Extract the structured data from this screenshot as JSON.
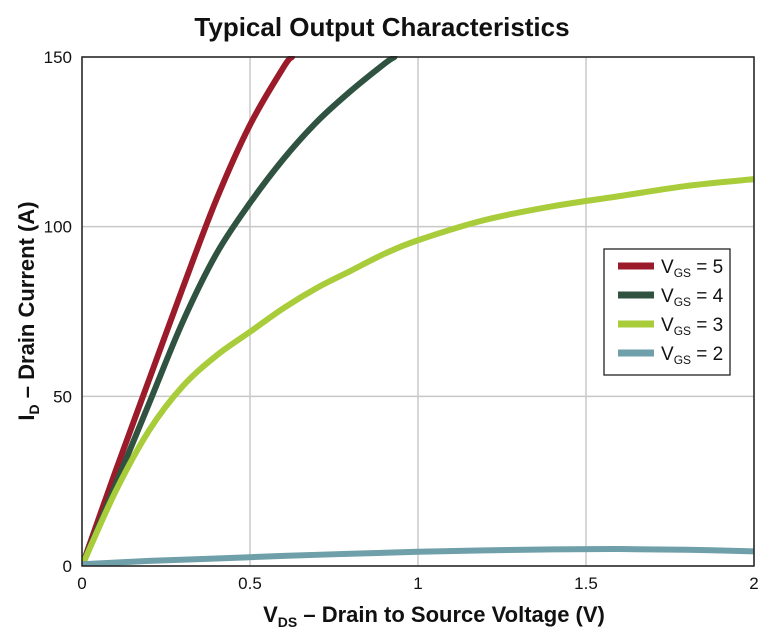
{
  "chart_data": {
    "type": "line",
    "title": "Typical Output Characteristics",
    "xlabel": {
      "main": "V",
      "sub": "DS",
      "rest": " – Drain to Source Voltage (V)"
    },
    "ylabel": {
      "main": "I",
      "sub": "D",
      "rest": " – Drain Current (A)"
    },
    "xlim": [
      0,
      2
    ],
    "ylim": [
      0,
      150
    ],
    "xticks": [
      0,
      0.5,
      1,
      1.5,
      2
    ],
    "xtick_labels": [
      "0",
      "0.5",
      "1",
      "1.5",
      "2"
    ],
    "yticks": [
      0,
      50,
      100,
      150
    ],
    "ytick_labels": [
      "0",
      "50",
      "100",
      "150"
    ],
    "grid": true,
    "legend_position": "right",
    "series": [
      {
        "name": "V_GS = 5",
        "label_main": "V",
        "label_sub": "GS",
        "label_rest": " = 5",
        "color": "#9b1b2a",
        "x": [
          0,
          0.1,
          0.2,
          0.3,
          0.4,
          0.5,
          0.6,
          0.625
        ],
        "y": [
          0,
          28,
          55,
          82,
          108,
          130,
          147,
          150
        ]
      },
      {
        "name": "V_GS = 4",
        "label_main": "V",
        "label_sub": "GS",
        "label_rest": " = 4",
        "color": "#2f5340",
        "x": [
          0,
          0.1,
          0.2,
          0.3,
          0.4,
          0.5,
          0.6,
          0.7,
          0.8,
          0.9,
          0.93
        ],
        "y": [
          0,
          24,
          48,
          72,
          92,
          107,
          120,
          131,
          140,
          148,
          150
        ]
      },
      {
        "name": "V_GS = 3",
        "label_main": "V",
        "label_sub": "GS",
        "label_rest": " = 3",
        "color": "#a9cc3a",
        "x": [
          0,
          0.1,
          0.2,
          0.3,
          0.4,
          0.5,
          0.6,
          0.7,
          0.8,
          0.9,
          1.0,
          1.2,
          1.4,
          1.6,
          1.8,
          2.0
        ],
        "y": [
          0,
          22,
          40,
          53,
          62,
          69,
          76,
          82,
          87,
          92,
          96,
          102,
          106,
          109,
          112,
          114
        ]
      },
      {
        "name": "V_GS = 2",
        "label_main": "V",
        "label_sub": "GS",
        "label_rest": " = 2",
        "color": "#6f9fa8",
        "x": [
          0,
          0.2,
          0.4,
          0.6,
          0.8,
          1.0,
          1.2,
          1.4,
          1.6,
          1.8,
          2.0
        ],
        "y": [
          0.5,
          1.5,
          2.2,
          3.0,
          3.6,
          4.2,
          4.6,
          4.9,
          5.0,
          4.8,
          4.3
        ]
      }
    ]
  }
}
